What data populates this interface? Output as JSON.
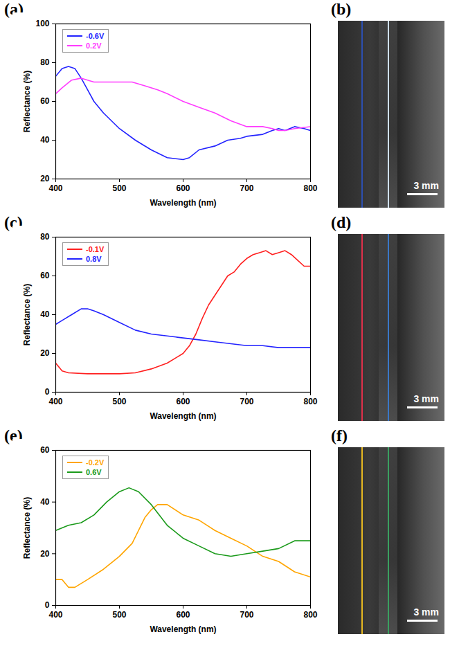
{
  "chart_data": [
    {
      "type": "line",
      "panel": "(a)",
      "x_label": "Wavelength (nm)",
      "y_label": "Reflectance (%)",
      "xlim": [
        400,
        800
      ],
      "xticks": [
        400,
        500,
        600,
        700,
        800
      ],
      "ylim": [
        20,
        100
      ],
      "yticks": [
        20,
        40,
        60,
        80,
        100
      ],
      "legend": "upper left",
      "series": [
        {
          "name": "-0.6V",
          "color": "#2323ff",
          "x": [
            400,
            410,
            420,
            430,
            440,
            450,
            460,
            475,
            500,
            525,
            550,
            575,
            600,
            610,
            625,
            650,
            670,
            690,
            700,
            725,
            740,
            750,
            760,
            775,
            790,
            800
          ],
          "values": [
            73,
            77,
            78,
            77,
            72,
            66,
            60,
            54,
            46,
            40,
            35,
            31,
            30,
            31,
            35,
            37,
            40,
            41,
            42,
            43,
            45,
            46,
            45,
            47,
            46,
            45
          ]
        },
        {
          "name": "0.2V",
          "color": "#ff3cff",
          "x": [
            400,
            410,
            425,
            440,
            450,
            460,
            475,
            500,
            520,
            540,
            560,
            575,
            600,
            625,
            650,
            675,
            700,
            725,
            740,
            750,
            760,
            775,
            800
          ],
          "values": [
            64,
            67,
            71,
            72,
            71,
            70,
            70,
            70,
            70,
            68,
            66,
            64,
            60,
            57,
            54,
            50,
            47,
            47,
            46,
            45,
            45,
            46,
            47
          ]
        }
      ]
    },
    {
      "type": "line",
      "panel": "(c)",
      "x_label": "Wavelength (nm)",
      "y_label": "Reflectance (%)",
      "xlim": [
        400,
        800
      ],
      "xticks": [
        400,
        500,
        600,
        700,
        800
      ],
      "ylim": [
        0,
        80
      ],
      "yticks": [
        0,
        20,
        40,
        60,
        80
      ],
      "legend": "upper left",
      "series": [
        {
          "name": "-0.1V",
          "color": "#ff2020",
          "x": [
            400,
            410,
            420,
            450,
            500,
            525,
            550,
            575,
            590,
            600,
            610,
            620,
            630,
            640,
            650,
            660,
            670,
            680,
            690,
            700,
            710,
            720,
            730,
            740,
            750,
            760,
            770,
            780,
            790,
            800
          ],
          "values": [
            15,
            11,
            10,
            9.5,
            9.5,
            10,
            12,
            15,
            18,
            20,
            24,
            30,
            38,
            45,
            50,
            55,
            60,
            62,
            66,
            69,
            71,
            72,
            73,
            71,
            72,
            73,
            71,
            68,
            65,
            65
          ]
        },
        {
          "name": "0.8V",
          "color": "#2323ff",
          "x": [
            400,
            410,
            425,
            440,
            450,
            460,
            475,
            500,
            525,
            550,
            575,
            600,
            625,
            650,
            675,
            700,
            725,
            750,
            775,
            800
          ],
          "values": [
            35,
            37,
            40,
            43,
            43,
            42,
            40,
            36,
            32,
            30,
            29,
            28,
            27,
            26,
            25,
            24,
            24,
            23,
            23,
            23
          ]
        }
      ]
    },
    {
      "type": "line",
      "panel": "(e)",
      "x_label": "Wavelength (nm)",
      "y_label": "Reflectance (%)",
      "xlim": [
        400,
        800
      ],
      "xticks": [
        400,
        500,
        600,
        700,
        800
      ],
      "ylim": [
        0,
        60
      ],
      "yticks": [
        0,
        20,
        40,
        60
      ],
      "legend": "upper left",
      "series": [
        {
          "name": "-0.2V",
          "color": "#ffa500",
          "x": [
            400,
            410,
            420,
            430,
            450,
            475,
            500,
            520,
            530,
            540,
            550,
            560,
            575,
            600,
            625,
            650,
            675,
            700,
            725,
            750,
            775,
            800
          ],
          "values": [
            10,
            10,
            7,
            7,
            10,
            14,
            19,
            24,
            29,
            34,
            37,
            39,
            39,
            35,
            33,
            29,
            26,
            23,
            19,
            17,
            13,
            11
          ]
        },
        {
          "name": "0.6V",
          "color": "#1a9a1a",
          "x": [
            400,
            420,
            440,
            460,
            480,
            500,
            515,
            530,
            550,
            575,
            600,
            625,
            650,
            675,
            700,
            725,
            750,
            775,
            800
          ],
          "values": [
            29,
            31,
            32,
            35,
            40,
            44,
            45.5,
            44,
            39,
            31,
            26,
            23,
            20,
            19,
            20,
            21,
            22,
            25,
            25
          ]
        }
      ]
    }
  ],
  "photos": [
    {
      "panel": "(b)",
      "scale_bar": "3 mm",
      "colors": [
        "#2c4fb0",
        "#cfe0f0"
      ]
    },
    {
      "panel": "(d)",
      "scale_bar": "3 mm",
      "colors": [
        "#e0304a",
        "#3a78c8"
      ]
    },
    {
      "panel": "(f)",
      "scale_bar": "3 mm",
      "colors": [
        "#e8b820",
        "#3aa060"
      ]
    }
  ]
}
